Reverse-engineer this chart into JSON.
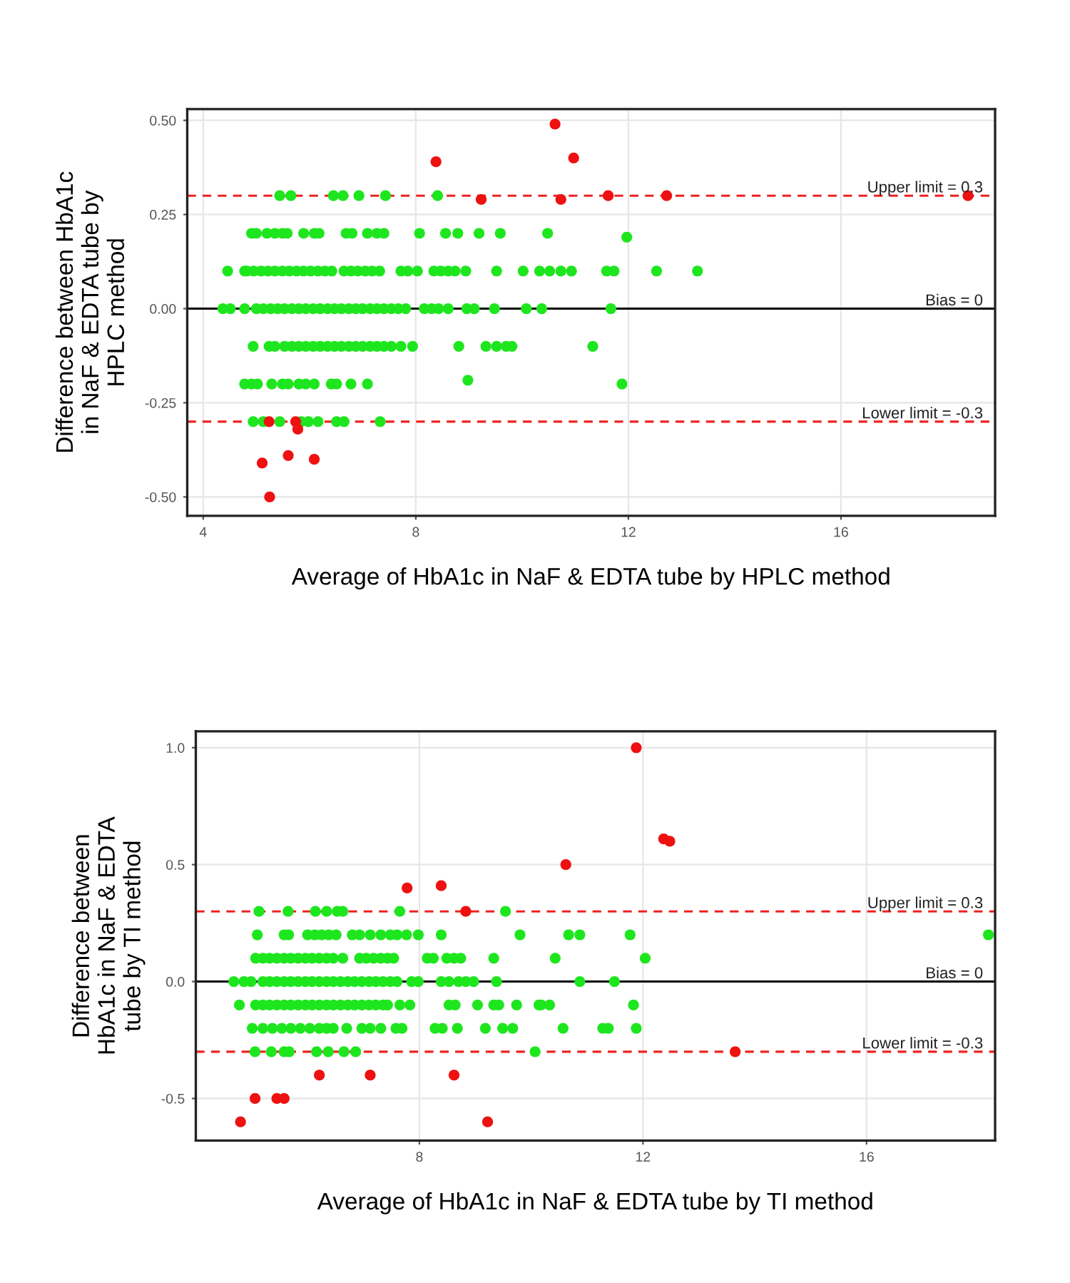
{
  "chart_data": [
    {
      "type": "scatter",
      "xlabel": "Average of HbA1c in NaF & EDTA tube by HPLC method",
      "ylabel": "Difference between HbA1c\nin NaF & EDTA tube by\nHPLC method",
      "xlim": [
        3.7,
        18.9
      ],
      "ylim": [
        -0.55,
        0.53
      ],
      "xticks": [
        4,
        8,
        12,
        16
      ],
      "yticks": [
        {
          "value": -0.5,
          "label": "-0.50"
        },
        {
          "value": -0.25,
          "label": "-0.25"
        },
        {
          "value": 0,
          "label": "0.00"
        },
        {
          "value": 0.25,
          "label": "0.25"
        },
        {
          "value": 0.5,
          "label": "0.50"
        }
      ],
      "grid": true,
      "marker": "circle",
      "ref_lines": [
        {
          "axis": "y",
          "value": 0.3,
          "label": "Upper limit = 0.3",
          "color": "#ee2222",
          "line_style": "dashed"
        },
        {
          "axis": "y",
          "value": 0,
          "label": "Bias = 0",
          "color": "#000000",
          "line_style": "solid"
        },
        {
          "axis": "y",
          "value": -0.3,
          "label": "Lower limit = -0.3",
          "color": "#ee2222",
          "line_style": "dashed"
        }
      ],
      "series": [
        {
          "color": "#1ee61e",
          "x": [
            5.44,
            5.65,
            6.45,
            6.63,
            6.93,
            7.43,
            8.41,
            4.91,
            5.0,
            5.2,
            5.35,
            5.49,
            5.58,
            5.89,
            6.09,
            6.18,
            6.69,
            6.8,
            7.09,
            7.27,
            7.4,
            8.07,
            8.56,
            8.79,
            9.19,
            9.59,
            10.48,
            11.97,
            4.46,
            4.78,
            4.82,
            4.95,
            5.09,
            5.22,
            5.35,
            5.49,
            5.62,
            5.76,
            5.89,
            6.02,
            6.16,
            6.29,
            6.42,
            6.65,
            6.78,
            6.91,
            7.05,
            7.18,
            7.32,
            7.72,
            7.85,
            8.03,
            8.34,
            8.47,
            8.61,
            8.74,
            8.94,
            9.52,
            10.02,
            10.33,
            10.52,
            10.73,
            10.93,
            11.59,
            11.73,
            12.53,
            13.3,
            4.37,
            4.51,
            4.78,
            5.0,
            5.13,
            5.27,
            5.4,
            5.53,
            5.67,
            5.8,
            5.93,
            6.07,
            6.2,
            6.34,
            6.47,
            6.6,
            6.74,
            6.87,
            7.0,
            7.14,
            7.27,
            7.4,
            7.54,
            7.67,
            7.81,
            8.16,
            8.3,
            8.43,
            8.61,
            8.96,
            9.1,
            9.48,
            10.08,
            10.37,
            11.67,
            4.94,
            5.24,
            5.35,
            5.53,
            5.67,
            5.8,
            5.93,
            6.07,
            6.2,
            6.34,
            6.47,
            6.6,
            6.74,
            6.87,
            7.0,
            7.14,
            7.27,
            7.4,
            7.54,
            7.72,
            7.94,
            8.81,
            9.32,
            9.52,
            9.7,
            9.81,
            11.33,
            4.78,
            4.91,
            5.02,
            5.29,
            5.49,
            5.6,
            5.8,
            5.93,
            6.09,
            6.41,
            6.51,
            6.78,
            7.09,
            8.98,
            11.88,
            4.94,
            5.13,
            5.44,
            5.84,
            5.98,
            6.16,
            6.51,
            6.65,
            7.33
          ],
          "values": [
            0.3,
            0.3,
            0.3,
            0.3,
            0.3,
            0.3,
            0.3,
            0.2,
            0.2,
            0.2,
            0.2,
            0.2,
            0.2,
            0.2,
            0.2,
            0.2,
            0.2,
            0.2,
            0.2,
            0.2,
            0.2,
            0.2,
            0.2,
            0.2,
            0.2,
            0.2,
            0.2,
            0.19,
            0.1,
            0.1,
            0.1,
            0.1,
            0.1,
            0.1,
            0.1,
            0.1,
            0.1,
            0.1,
            0.1,
            0.1,
            0.1,
            0.1,
            0.1,
            0.1,
            0.1,
            0.1,
            0.1,
            0.1,
            0.1,
            0.1,
            0.1,
            0.1,
            0.1,
            0.1,
            0.1,
            0.1,
            0.1,
            0.1,
            0.1,
            0.1,
            0.1,
            0.1,
            0.1,
            0.1,
            0.1,
            0.1,
            0.1,
            0,
            0,
            0,
            0,
            0,
            0,
            0,
            0,
            0,
            0,
            0,
            0,
            0,
            0,
            0,
            0,
            0,
            0,
            0,
            0,
            0,
            0,
            0,
            0,
            0,
            0,
            0,
            0,
            0,
            0,
            0,
            0,
            0,
            0,
            0,
            -0.1,
            -0.1,
            -0.1,
            -0.1,
            -0.1,
            -0.1,
            -0.1,
            -0.1,
            -0.1,
            -0.1,
            -0.1,
            -0.1,
            -0.1,
            -0.1,
            -0.1,
            -0.1,
            -0.1,
            -0.1,
            -0.1,
            -0.1,
            -0.1,
            -0.1,
            -0.1,
            -0.1,
            -0.1,
            -0.1,
            -0.1,
            -0.2,
            -0.2,
            -0.2,
            -0.2,
            -0.2,
            -0.2,
            -0.2,
            -0.2,
            -0.2,
            -0.2,
            -0.2,
            -0.2,
            -0.2,
            -0.19,
            -0.2,
            -0.3,
            -0.3,
            -0.3,
            -0.3,
            -0.3,
            -0.3,
            -0.3,
            -0.3,
            -0.3
          ]
        },
        {
          "color": "#ee1111",
          "x": [
            10.62,
            8.38,
            10.97,
            9.23,
            10.73,
            11.62,
            12.72,
            18.39,
            5.24,
            5.74,
            5.78,
            5.11,
            5.6,
            6.09,
            5.25
          ],
          "values": [
            0.49,
            0.39,
            0.4,
            0.29,
            0.29,
            0.3,
            0.3,
            0.3,
            -0.3,
            -0.3,
            -0.32,
            -0.41,
            -0.39,
            -0.4,
            -0.5
          ]
        }
      ]
    },
    {
      "type": "scatter",
      "xlabel": "Average of HbA1c in NaF & EDTA tube by TI method",
      "ylabel": "Difference between\nHbA1c in NaF & EDTA\ntube by TI method",
      "xlim": [
        4.0,
        18.3
      ],
      "ylim": [
        -0.68,
        1.07
      ],
      "xticks": [
        8,
        12,
        16
      ],
      "yticks": [
        -0.5,
        {
          "value": 0,
          "label": "0.0"
        },
        0.5,
        {
          "value": 1,
          "label": "1.0"
        }
      ],
      "grid": true,
      "marker": "circle",
      "ref_lines": [
        {
          "axis": "y",
          "value": 0.3,
          "label": "Upper limit = 0.3",
          "color": "#ee2222",
          "line_style": "dashed"
        },
        {
          "axis": "y",
          "value": 0,
          "label": "Bias = 0",
          "color": "#000000",
          "line_style": "solid"
        },
        {
          "axis": "y",
          "value": -0.3,
          "label": "Lower limit = -0.3",
          "color": "#ee2222",
          "line_style": "dashed"
        }
      ],
      "series": [
        {
          "color": "#1ee61e",
          "x": [
            5.13,
            5.65,
            6.14,
            6.34,
            6.53,
            6.63,
            7.65,
            9.54,
            5.1,
            5.58,
            5.66,
            6.0,
            6.13,
            6.25,
            6.38,
            6.51,
            6.8,
            6.93,
            7.12,
            7.31,
            7.48,
            7.6,
            7.77,
            7.98,
            8.39,
            9.8,
            10.67,
            10.87,
            11.77,
            18.18,
            5.07,
            5.2,
            5.32,
            5.45,
            5.58,
            5.7,
            5.83,
            5.96,
            6.08,
            6.21,
            6.34,
            6.46,
            6.63,
            6.93,
            7.05,
            7.18,
            7.31,
            7.43,
            7.54,
            8.14,
            8.25,
            8.49,
            8.62,
            8.74,
            9.33,
            10.43,
            12.04,
            4.68,
            4.86,
            4.99,
            5.2,
            5.32,
            5.45,
            5.58,
            5.7,
            5.83,
            5.96,
            6.08,
            6.21,
            6.34,
            6.46,
            6.59,
            6.72,
            6.84,
            6.97,
            7.1,
            7.22,
            7.35,
            7.48,
            7.6,
            7.86,
            7.98,
            8.39,
            8.53,
            8.7,
            8.83,
            8.97,
            9.38,
            10.87,
            11.49,
            4.78,
            5.07,
            5.2,
            5.32,
            5.45,
            5.58,
            5.7,
            5.83,
            5.96,
            6.08,
            6.21,
            6.34,
            6.46,
            6.59,
            6.72,
            6.84,
            6.97,
            7.1,
            7.22,
            7.35,
            7.43,
            7.65,
            7.83,
            8.53,
            8.64,
            9.04,
            9.33,
            9.42,
            9.74,
            10.14,
            10.18,
            10.33,
            11.83,
            5.01,
            5.2,
            5.37,
            5.54,
            5.7,
            5.87,
            6.04,
            6.21,
            6.34,
            6.46,
            6.7,
            6.97,
            7.12,
            7.31,
            7.58,
            7.69,
            8.28,
            8.41,
            8.68,
            9.18,
            9.49,
            9.67,
            10.57,
            11.28,
            11.38,
            11.88,
            5.06,
            5.35,
            5.58,
            5.67,
            6.16,
            6.37,
            6.65,
            6.86,
            10.07
          ],
          "values": [
            0.3,
            0.3,
            0.3,
            0.3,
            0.3,
            0.3,
            0.3,
            0.3,
            0.2,
            0.2,
            0.2,
            0.2,
            0.2,
            0.2,
            0.2,
            0.2,
            0.2,
            0.2,
            0.2,
            0.2,
            0.2,
            0.2,
            0.2,
            0.2,
            0.2,
            0.2,
            0.2,
            0.2,
            0.2,
            0.2,
            0.1,
            0.1,
            0.1,
            0.1,
            0.1,
            0.1,
            0.1,
            0.1,
            0.1,
            0.1,
            0.1,
            0.1,
            0.1,
            0.1,
            0.1,
            0.1,
            0.1,
            0.1,
            0.1,
            0.1,
            0.1,
            0.1,
            0.1,
            0.1,
            0.1,
            0.1,
            0.1,
            0,
            0,
            0,
            0,
            0,
            0,
            0,
            0,
            0,
            0,
            0,
            0,
            0,
            0,
            0,
            0,
            0,
            0,
            0,
            0,
            0,
            0,
            0,
            0,
            0,
            0,
            0,
            0,
            0,
            0,
            0,
            0,
            0,
            -0.1,
            -0.1,
            -0.1,
            -0.1,
            -0.1,
            -0.1,
            -0.1,
            -0.1,
            -0.1,
            -0.1,
            -0.1,
            -0.1,
            -0.1,
            -0.1,
            -0.1,
            -0.1,
            -0.1,
            -0.1,
            -0.1,
            -0.1,
            -0.1,
            -0.1,
            -0.1,
            -0.1,
            -0.1,
            -0.1,
            -0.1,
            -0.1,
            -0.1,
            -0.1,
            -0.1,
            -0.1,
            -0.1,
            -0.2,
            -0.2,
            -0.2,
            -0.2,
            -0.2,
            -0.2,
            -0.2,
            -0.2,
            -0.2,
            -0.2,
            -0.2,
            -0.2,
            -0.2,
            -0.2,
            -0.2,
            -0.2,
            -0.2,
            -0.2,
            -0.2,
            -0.2,
            -0.2,
            -0.2,
            -0.2,
            -0.2,
            -0.2,
            -0.2,
            -0.3,
            -0.3,
            -0.3,
            -0.3,
            -0.3,
            -0.3,
            -0.3,
            -0.3,
            -0.3
          ]
        },
        {
          "color": "#ee1111",
          "x": [
            10.62,
            7.78,
            8.39,
            8.83,
            11.88,
            12.37,
            12.48,
            13.65,
            6.21,
            7.12,
            8.62,
            5.06,
            5.45,
            5.58,
            4.8,
            9.22
          ],
          "values": [
            0.5,
            0.4,
            0.41,
            0.3,
            1.0,
            0.61,
            0.6,
            -0.3,
            -0.4,
            -0.4,
            -0.4,
            -0.5,
            -0.5,
            -0.5,
            -0.6,
            -0.6
          ]
        }
      ]
    }
  ]
}
